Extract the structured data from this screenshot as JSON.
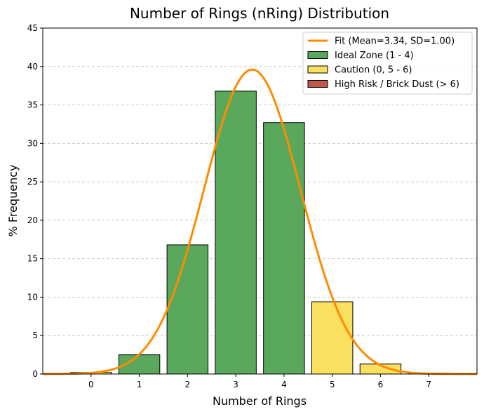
{
  "chart_data": {
    "type": "bar",
    "title": "Number of Rings (nRing) Distribution",
    "xlabel": "Number of Rings",
    "ylabel": "% Frequency",
    "xlim": [
      -1,
      8
    ],
    "ylim": [
      0,
      45
    ],
    "x_ticks": [
      0,
      1,
      2,
      3,
      4,
      5,
      6,
      7
    ],
    "y_ticks": [
      0,
      5,
      10,
      15,
      20,
      25,
      30,
      35,
      40,
      45
    ],
    "grid": "y-dashed",
    "legend_position": "top-right",
    "bars": [
      {
        "x": 0,
        "value": 0.2,
        "zone": "caution"
      },
      {
        "x": 1,
        "value": 2.5,
        "zone": "ideal"
      },
      {
        "x": 2,
        "value": 16.8,
        "zone": "ideal"
      },
      {
        "x": 3,
        "value": 36.8,
        "zone": "ideal"
      },
      {
        "x": 4,
        "value": 32.7,
        "zone": "ideal"
      },
      {
        "x": 5,
        "value": 9.4,
        "zone": "caution"
      },
      {
        "x": 6,
        "value": 1.3,
        "zone": "caution"
      },
      {
        "x": 7,
        "value": 0.1,
        "zone": "high_risk"
      }
    ],
    "bar_width": 0.85,
    "fit": {
      "mean": 3.34,
      "sd": 1.0,
      "peak": 39.6,
      "label": "Fit (Mean=3.34, SD=1.00)",
      "color": "#ff8c00"
    },
    "legend": [
      {
        "label": "Fit (Mean=3.34, SD=1.00)",
        "kind": "line",
        "color": "#ff8c00"
      },
      {
        "label": "Ideal Zone (1 - 4)",
        "kind": "patch",
        "color": "#5aa85c"
      },
      {
        "label": "Caution (0, 5 - 6)",
        "kind": "patch",
        "color": "#fbdf5e"
      },
      {
        "label": "High Risk / Brick Dust (> 6)",
        "kind": "patch",
        "color": "#c0584f"
      }
    ],
    "colors": {
      "ideal": "#5aa85c",
      "caution": "#fbdf5e",
      "high_risk": "#c0584f"
    }
  }
}
